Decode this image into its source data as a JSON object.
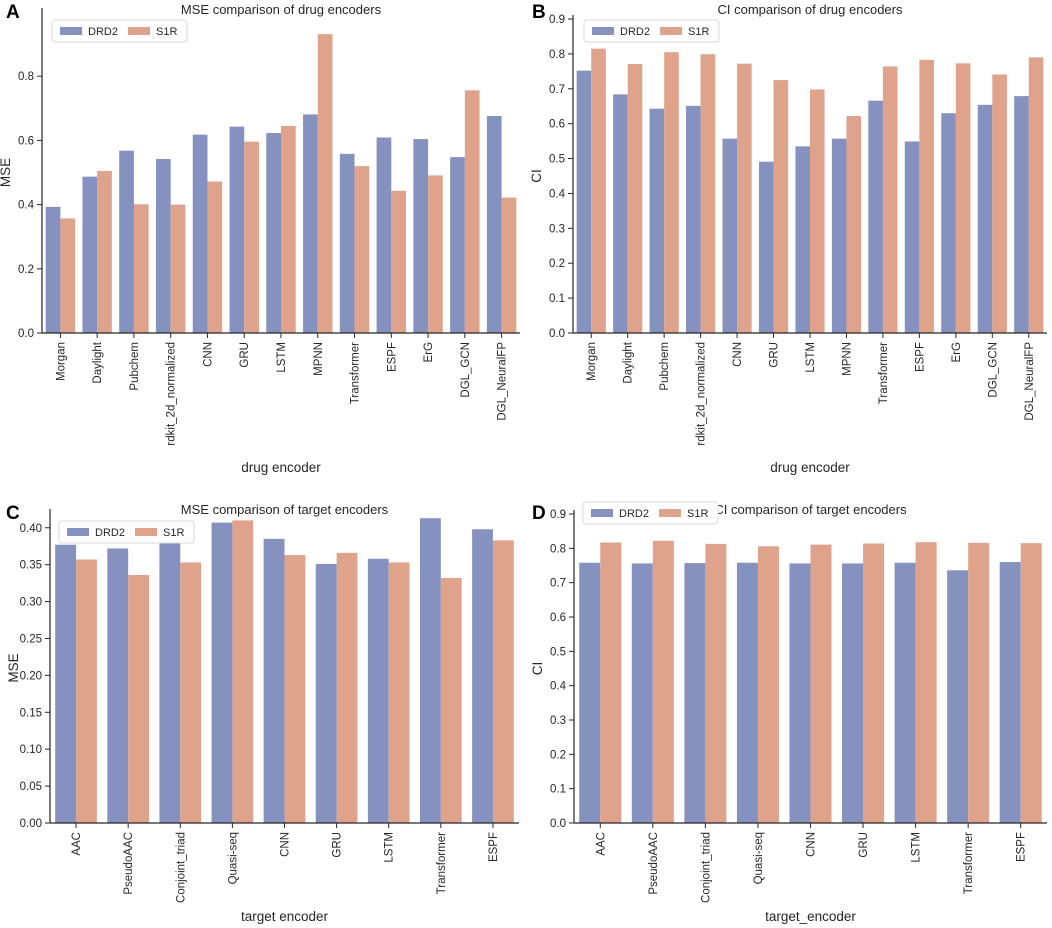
{
  "colors": {
    "DRD2": "#8592bf",
    "S1R": "#dfa38c"
  },
  "chart_data": [
    {
      "panel": "A",
      "type": "bar",
      "title": "MSE comparison of drug encoders",
      "xlabel": "drug encoder",
      "ylabel": "MSE",
      "ylim": [
        0,
        1.0
      ],
      "yticks": [
        0.0,
        0.2,
        0.4,
        0.6,
        0.8
      ],
      "tick_decimals": 1,
      "legend": "top-left",
      "categories": [
        "Morgan",
        "Daylight",
        "Pubchem",
        "rdkit_2d_normalized",
        "CNN",
        "GRU",
        "LSTM",
        "MPNN",
        "Transformer",
        "ESPF",
        "ErG",
        "DGL_GCN",
        "DGL_NeuralFP"
      ],
      "series": [
        {
          "name": "DRD2",
          "values": [
            0.393,
            0.487,
            0.568,
            0.542,
            0.618,
            0.643,
            0.623,
            0.681,
            0.558,
            0.609,
            0.604,
            0.548,
            0.676
          ]
        },
        {
          "name": "S1R",
          "values": [
            0.357,
            0.505,
            0.401,
            0.4,
            0.472,
            0.596,
            0.645,
            0.931,
            0.52,
            0.443,
            0.491,
            0.756,
            0.422
          ]
        }
      ]
    },
    {
      "panel": "B",
      "type": "bar",
      "title": "CI comparison of drug encoders",
      "xlabel": "drug encoder",
      "ylabel": "CI",
      "ylim": [
        0,
        0.9
      ],
      "yticks": [
        0.0,
        0.1,
        0.2,
        0.3,
        0.4,
        0.5,
        0.6,
        0.7,
        0.8,
        0.9
      ],
      "tick_decimals": 1,
      "legend": "top-left",
      "categories": [
        "Morgan",
        "Daylight",
        "Pubchem",
        "rdkit_2d_normalized",
        "CNN",
        "GRU",
        "LSTM",
        "MPNN",
        "Transformer",
        "ESPF",
        "ErG",
        "DGL_GCN",
        "DGL_NeuralFP"
      ],
      "series": [
        {
          "name": "DRD2",
          "values": [
            0.752,
            0.684,
            0.643,
            0.651,
            0.557,
            0.491,
            0.535,
            0.557,
            0.666,
            0.549,
            0.63,
            0.654,
            0.679
          ]
        },
        {
          "name": "S1R",
          "values": [
            0.815,
            0.771,
            0.805,
            0.799,
            0.772,
            0.725,
            0.698,
            0.622,
            0.764,
            0.783,
            0.773,
            0.741,
            0.79
          ]
        }
      ]
    },
    {
      "panel": "C",
      "type": "bar",
      "title": "MSE comparison of target encoders",
      "xlabel": "target encoder",
      "ylabel": "MSE",
      "ylim": [
        0,
        0.42
      ],
      "yticks": [
        0.0,
        0.05,
        0.1,
        0.15,
        0.2,
        0.25,
        0.3,
        0.35,
        0.4
      ],
      "tick_decimals": 2,
      "legend": "top-left",
      "categories": [
        "AAC",
        "PseudoAAC",
        "Conjoint_triad",
        "Quasi-seq",
        "CNN",
        "GRU",
        "LSTM",
        "Transformer",
        "ESPF"
      ],
      "series": [
        {
          "name": "DRD2",
          "values": [
            0.377,
            0.372,
            0.382,
            0.407,
            0.385,
            0.351,
            0.358,
            0.413,
            0.398
          ]
        },
        {
          "name": "S1R",
          "values": [
            0.357,
            0.336,
            0.353,
            0.41,
            0.363,
            0.366,
            0.353,
            0.332,
            0.383
          ]
        }
      ]
    },
    {
      "panel": "D",
      "type": "bar",
      "title": "CI comparison of target encoders",
      "xlabel": "target_encoder",
      "ylabel": "CI",
      "ylim": [
        0,
        0.9
      ],
      "yticks": [
        0.0,
        0.1,
        0.2,
        0.3,
        0.4,
        0.5,
        0.6,
        0.7,
        0.8,
        0.9
      ],
      "tick_decimals": 1,
      "legend": "top-left",
      "categories": [
        "AAC",
        "PseudoAAC",
        "Conjoint_triad",
        "Quasi-seq",
        "CNN",
        "GRU",
        "LSTM",
        "Transformer",
        "ESPF"
      ],
      "series": [
        {
          "name": "DRD2",
          "values": [
            0.758,
            0.756,
            0.757,
            0.758,
            0.756,
            0.756,
            0.758,
            0.736,
            0.76
          ]
        },
        {
          "name": "S1R",
          "values": [
            0.817,
            0.822,
            0.813,
            0.806,
            0.811,
            0.814,
            0.818,
            0.816,
            0.815
          ]
        }
      ]
    }
  ]
}
